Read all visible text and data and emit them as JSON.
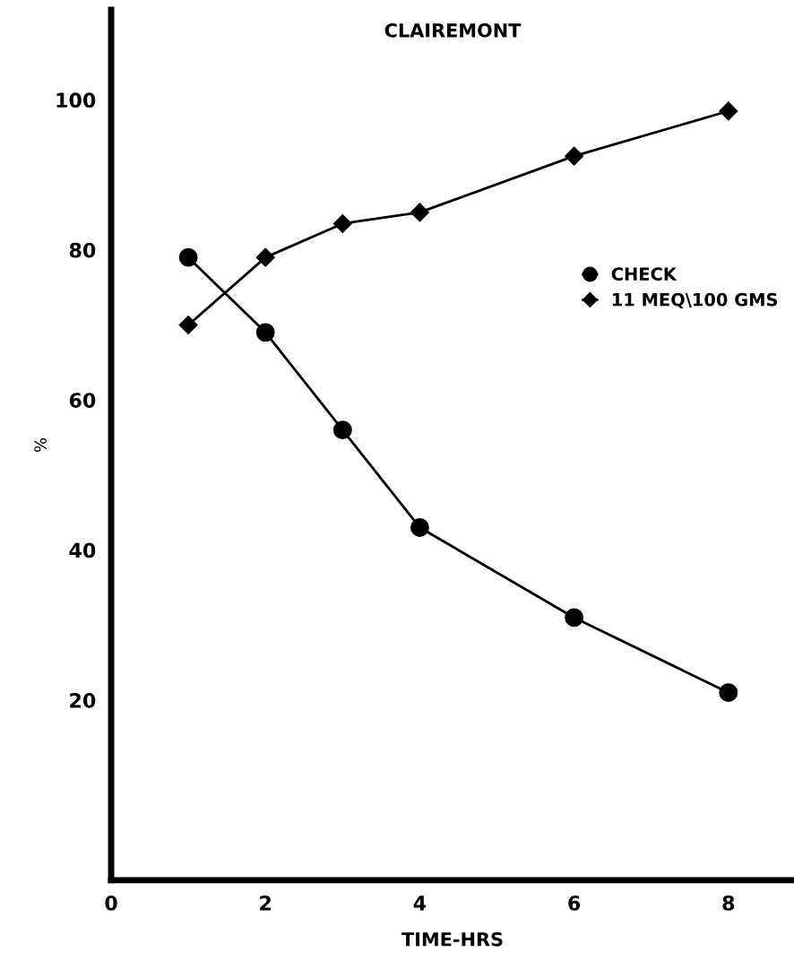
{
  "chart_data": {
    "type": "line",
    "title": "CLAIREMONT",
    "xlabel": "TIME-HRS",
    "ylabel": "%",
    "x": [
      1,
      2,
      3,
      4,
      6,
      8
    ],
    "series": [
      {
        "name": "CHECK",
        "color": "#000000",
        "marker": "circle",
        "values": [
          79,
          69,
          56,
          43,
          31,
          21
        ]
      },
      {
        "name": "11 MEQ\\100 GMS",
        "color": "#000000",
        "marker": "diamond",
        "values": [
          70,
          79,
          83.5,
          85,
          92.5,
          98.5
        ]
      }
    ],
    "xlim": [
      0,
      8.85
    ],
    "ylim": [
      -4,
      112
    ],
    "xticks": [
      0,
      2,
      4,
      6,
      8
    ],
    "yticks": [
      20,
      40,
      60,
      80,
      100
    ],
    "grid": false,
    "legend": "right",
    "line_style": "solid"
  }
}
